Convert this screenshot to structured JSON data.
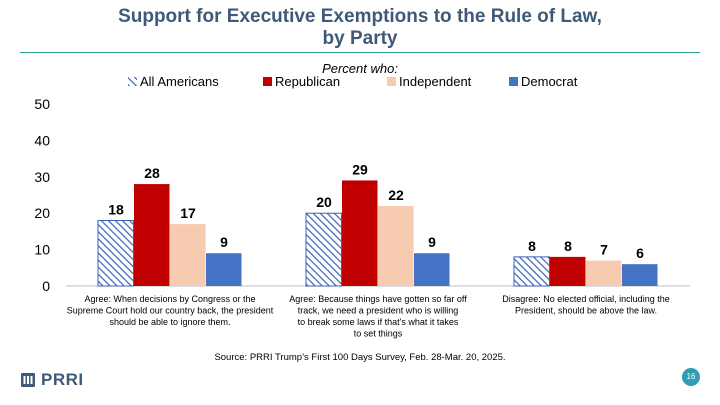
{
  "title_line1": "Support for Executive Exemptions to the Rule of Law,",
  "title_line2": "by Party",
  "footer": {
    "source": "Source: PRRI Trump’s First 100 Days Survey, Feb. 28-Mar. 20, 2025.",
    "logo_text": "PRRI",
    "page_number": "16"
  },
  "colors": {
    "title": "#3e5a78",
    "rule": "#2a9d8f",
    "all_americans": "#3a62b8",
    "republican": "#c00000",
    "independent": "#f7cbb0",
    "democrat": "#4472c4"
  },
  "chart_data": {
    "type": "bar",
    "subtitle": "Percent who:",
    "categories": [
      "Agree: When decisions by Congress or the Supreme Court hold our country back, the president should be able to ignore them.",
      "Agree: Because things have gotten so far off track, we need a president who is willing to break some laws if that's what it takes to set things right.",
      "Disagree: No elected official, including the President, should be above the law."
    ],
    "series": [
      {
        "name": "All Americans",
        "values": [
          18,
          20,
          8
        ],
        "fill": "hatched"
      },
      {
        "name": "Republican",
        "values": [
          28,
          29,
          8
        ],
        "fill": "solid"
      },
      {
        "name": "Independent",
        "values": [
          17,
          22,
          7
        ],
        "fill": "solid"
      },
      {
        "name": "Democrat",
        "values": [
          9,
          9,
          6
        ],
        "fill": "solid"
      }
    ],
    "yticks": [
      "0",
      "10",
      "20",
      "30",
      "40",
      "50"
    ],
    "ylim": [
      0,
      50
    ],
    "grid": false,
    "legend": "top"
  }
}
